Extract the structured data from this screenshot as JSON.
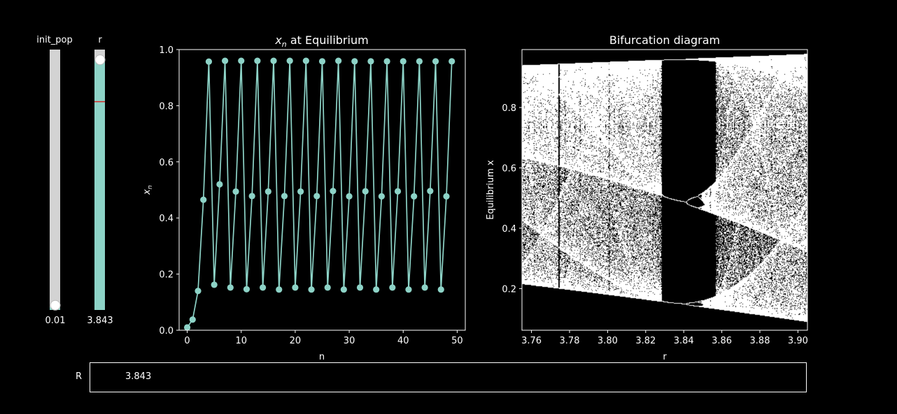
{
  "sliders": {
    "init_pop": {
      "label": "init_pop",
      "value": 0.01,
      "value_text": "0.01",
      "min": 0,
      "max": 1
    },
    "r": {
      "label": "r",
      "value": 3.843,
      "value_text": "3.843",
      "min": 0,
      "max": 4,
      "valinit": 3.2
    }
  },
  "textbox": {
    "label": "R",
    "value": "3.843"
  },
  "colors": {
    "accent": "#8dd3c7",
    "marker_line": "#d62728",
    "track": "#d3d3d3",
    "background": "#000000",
    "foreground": "#ffffff"
  },
  "chart_data": [
    {
      "type": "line",
      "title": "x_n at Equilibrium",
      "title_base": "x",
      "title_sub": "n",
      "title_rest": " at Equilibrium",
      "xlabel": "n",
      "ylabel_base": "x",
      "ylabel_sub": "n",
      "xlim": [
        -1.5,
        51.5
      ],
      "ylim": [
        0.0,
        1.0
      ],
      "xticks": [
        0,
        10,
        20,
        30,
        40,
        50
      ],
      "xtick_labels": [
        "0",
        "10",
        "20",
        "30",
        "40",
        "50"
      ],
      "yticks": [
        0.0,
        0.2,
        0.4,
        0.6,
        0.8,
        1.0
      ],
      "ytick_labels": [
        "0.0",
        "0.2",
        "0.4",
        "0.6",
        "0.8",
        "1.0"
      ],
      "series": [
        {
          "name": "x_n",
          "marker": "o",
          "x": [
            0,
            1,
            2,
            3,
            4,
            5,
            6,
            7,
            8,
            9,
            10,
            11,
            12,
            13,
            14,
            15,
            16,
            17,
            18,
            19,
            20,
            21,
            22,
            23,
            24,
            25,
            26,
            27,
            28,
            29,
            30,
            31,
            32,
            33,
            34,
            35,
            36,
            37,
            38,
            39,
            40,
            41,
            42,
            43,
            44,
            45,
            46,
            47,
            48,
            49
          ],
          "values": [
            0.01,
            0.038,
            0.14,
            0.465,
            0.957,
            0.162,
            0.52,
            0.96,
            0.152,
            0.494,
            0.96,
            0.146,
            0.478,
            0.96,
            0.152,
            0.494,
            0.96,
            0.145,
            0.478,
            0.96,
            0.152,
            0.494,
            0.96,
            0.145,
            0.478,
            0.958,
            0.152,
            0.496,
            0.96,
            0.145,
            0.477,
            0.958,
            0.152,
            0.495,
            0.958,
            0.145,
            0.477,
            0.958,
            0.152,
            0.495,
            0.958,
            0.145,
            0.477,
            0.958,
            0.152,
            0.496,
            0.958,
            0.145,
            0.477,
            0.958
          ]
        }
      ]
    },
    {
      "type": "scatter",
      "title": "Bifurcation diagram",
      "xlabel": "r",
      "ylabel": "Equilibrium x",
      "xlim": [
        3.755,
        3.905
      ],
      "ylim": [
        0.062,
        0.992
      ],
      "xticks": [
        3.76,
        3.78,
        3.8,
        3.82,
        3.84,
        3.86,
        3.88,
        3.9
      ],
      "xtick_labels": [
        "3.76",
        "3.78",
        "3.80",
        "3.82",
        "3.84",
        "3.86",
        "3.88",
        "3.90"
      ],
      "yticks": [
        0.2,
        0.4,
        0.6,
        0.8
      ],
      "ytick_labels": [
        "0.2",
        "0.4",
        "0.6",
        "0.8"
      ],
      "model": "logistic map x_{n+1} = r x_n (1 - x_n), iterated points plotted as tiny white dots"
    }
  ]
}
